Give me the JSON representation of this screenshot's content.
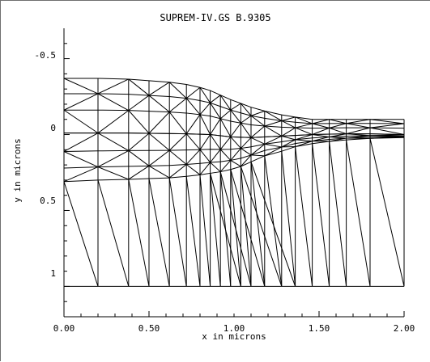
{
  "plot": {
    "title": "SUPREM-IV.GS B.9305",
    "xlabel": "x in microns",
    "ylabel": "y in microns",
    "x_ticks": [
      "0.00",
      "0.50",
      "1.00",
      "1.50",
      "2.00"
    ],
    "y_ticks": [
      "-0.5",
      "0",
      "0.5",
      "1"
    ],
    "axis_color": "#000000",
    "line_color": "#000000",
    "background": "#ffffff"
  },
  "chart_data": {
    "type": "diagram",
    "title": "SUPREM-IV.GS B.9305",
    "xlabel": "x in microns",
    "ylabel": "y in microns",
    "xlim": [
      0.0,
      2.0
    ],
    "ylim": [
      1.2,
      -0.7
    ],
    "x_tick_values": [
      0.0,
      0.5,
      1.0,
      1.5,
      2.0
    ],
    "y_tick_values": [
      -0.5,
      0.0,
      0.5,
      1.0
    ],
    "mesh_x_columns": [
      0.0,
      0.2,
      0.38,
      0.5,
      0.62,
      0.72,
      0.8,
      0.86,
      0.92,
      0.98,
      1.04,
      1.1,
      1.18,
      1.28,
      1.36,
      1.46,
      1.56,
      1.66,
      1.8,
      2.0
    ],
    "boundaries": {
      "top_surface": [
        [
          0.0,
          -0.37
        ],
        [
          0.2,
          -0.37
        ],
        [
          0.38,
          -0.365
        ],
        [
          0.5,
          -0.355
        ],
        [
          0.62,
          -0.345
        ],
        [
          0.72,
          -0.33
        ],
        [
          0.8,
          -0.31
        ],
        [
          0.86,
          -0.29
        ],
        [
          0.92,
          -0.26
        ],
        [
          0.98,
          -0.23
        ],
        [
          1.04,
          -0.205
        ],
        [
          1.1,
          -0.18
        ],
        [
          1.18,
          -0.155
        ],
        [
          1.28,
          -0.13
        ],
        [
          1.36,
          -0.115
        ],
        [
          1.46,
          -0.1
        ],
        [
          1.56,
          -0.1
        ],
        [
          1.66,
          -0.1
        ],
        [
          1.8,
          -0.1
        ],
        [
          2.0,
          -0.1
        ]
      ],
      "interface": [
        [
          0.0,
          -0.01
        ],
        [
          0.38,
          -0.01
        ],
        [
          0.72,
          -0.005
        ],
        [
          0.86,
          0.0
        ],
        [
          0.98,
          0.015
        ],
        [
          1.1,
          0.02
        ],
        [
          1.28,
          0.01
        ],
        [
          1.46,
          0.0
        ],
        [
          1.66,
          -0.005
        ],
        [
          1.8,
          -0.005
        ],
        [
          2.0,
          0.0
        ]
      ],
      "silicon_top": [
        [
          0.0,
          0.31
        ],
        [
          0.2,
          0.3
        ],
        [
          0.38,
          0.295
        ],
        [
          0.5,
          0.29
        ],
        [
          0.62,
          0.285
        ],
        [
          0.72,
          0.275
        ],
        [
          0.8,
          0.265
        ],
        [
          0.86,
          0.255
        ],
        [
          0.92,
          0.245
        ],
        [
          0.98,
          0.23
        ],
        [
          1.04,
          0.21
        ],
        [
          1.1,
          0.18
        ],
        [
          1.18,
          0.14
        ],
        [
          1.28,
          0.11
        ],
        [
          1.36,
          0.08
        ],
        [
          1.46,
          0.06
        ],
        [
          1.56,
          0.045
        ],
        [
          1.66,
          0.035
        ],
        [
          1.8,
          0.025
        ],
        [
          2.0,
          0.02
        ]
      ],
      "bottom": [
        [
          0.0,
          1.0
        ],
        [
          2.0,
          1.0
        ]
      ]
    }
  }
}
